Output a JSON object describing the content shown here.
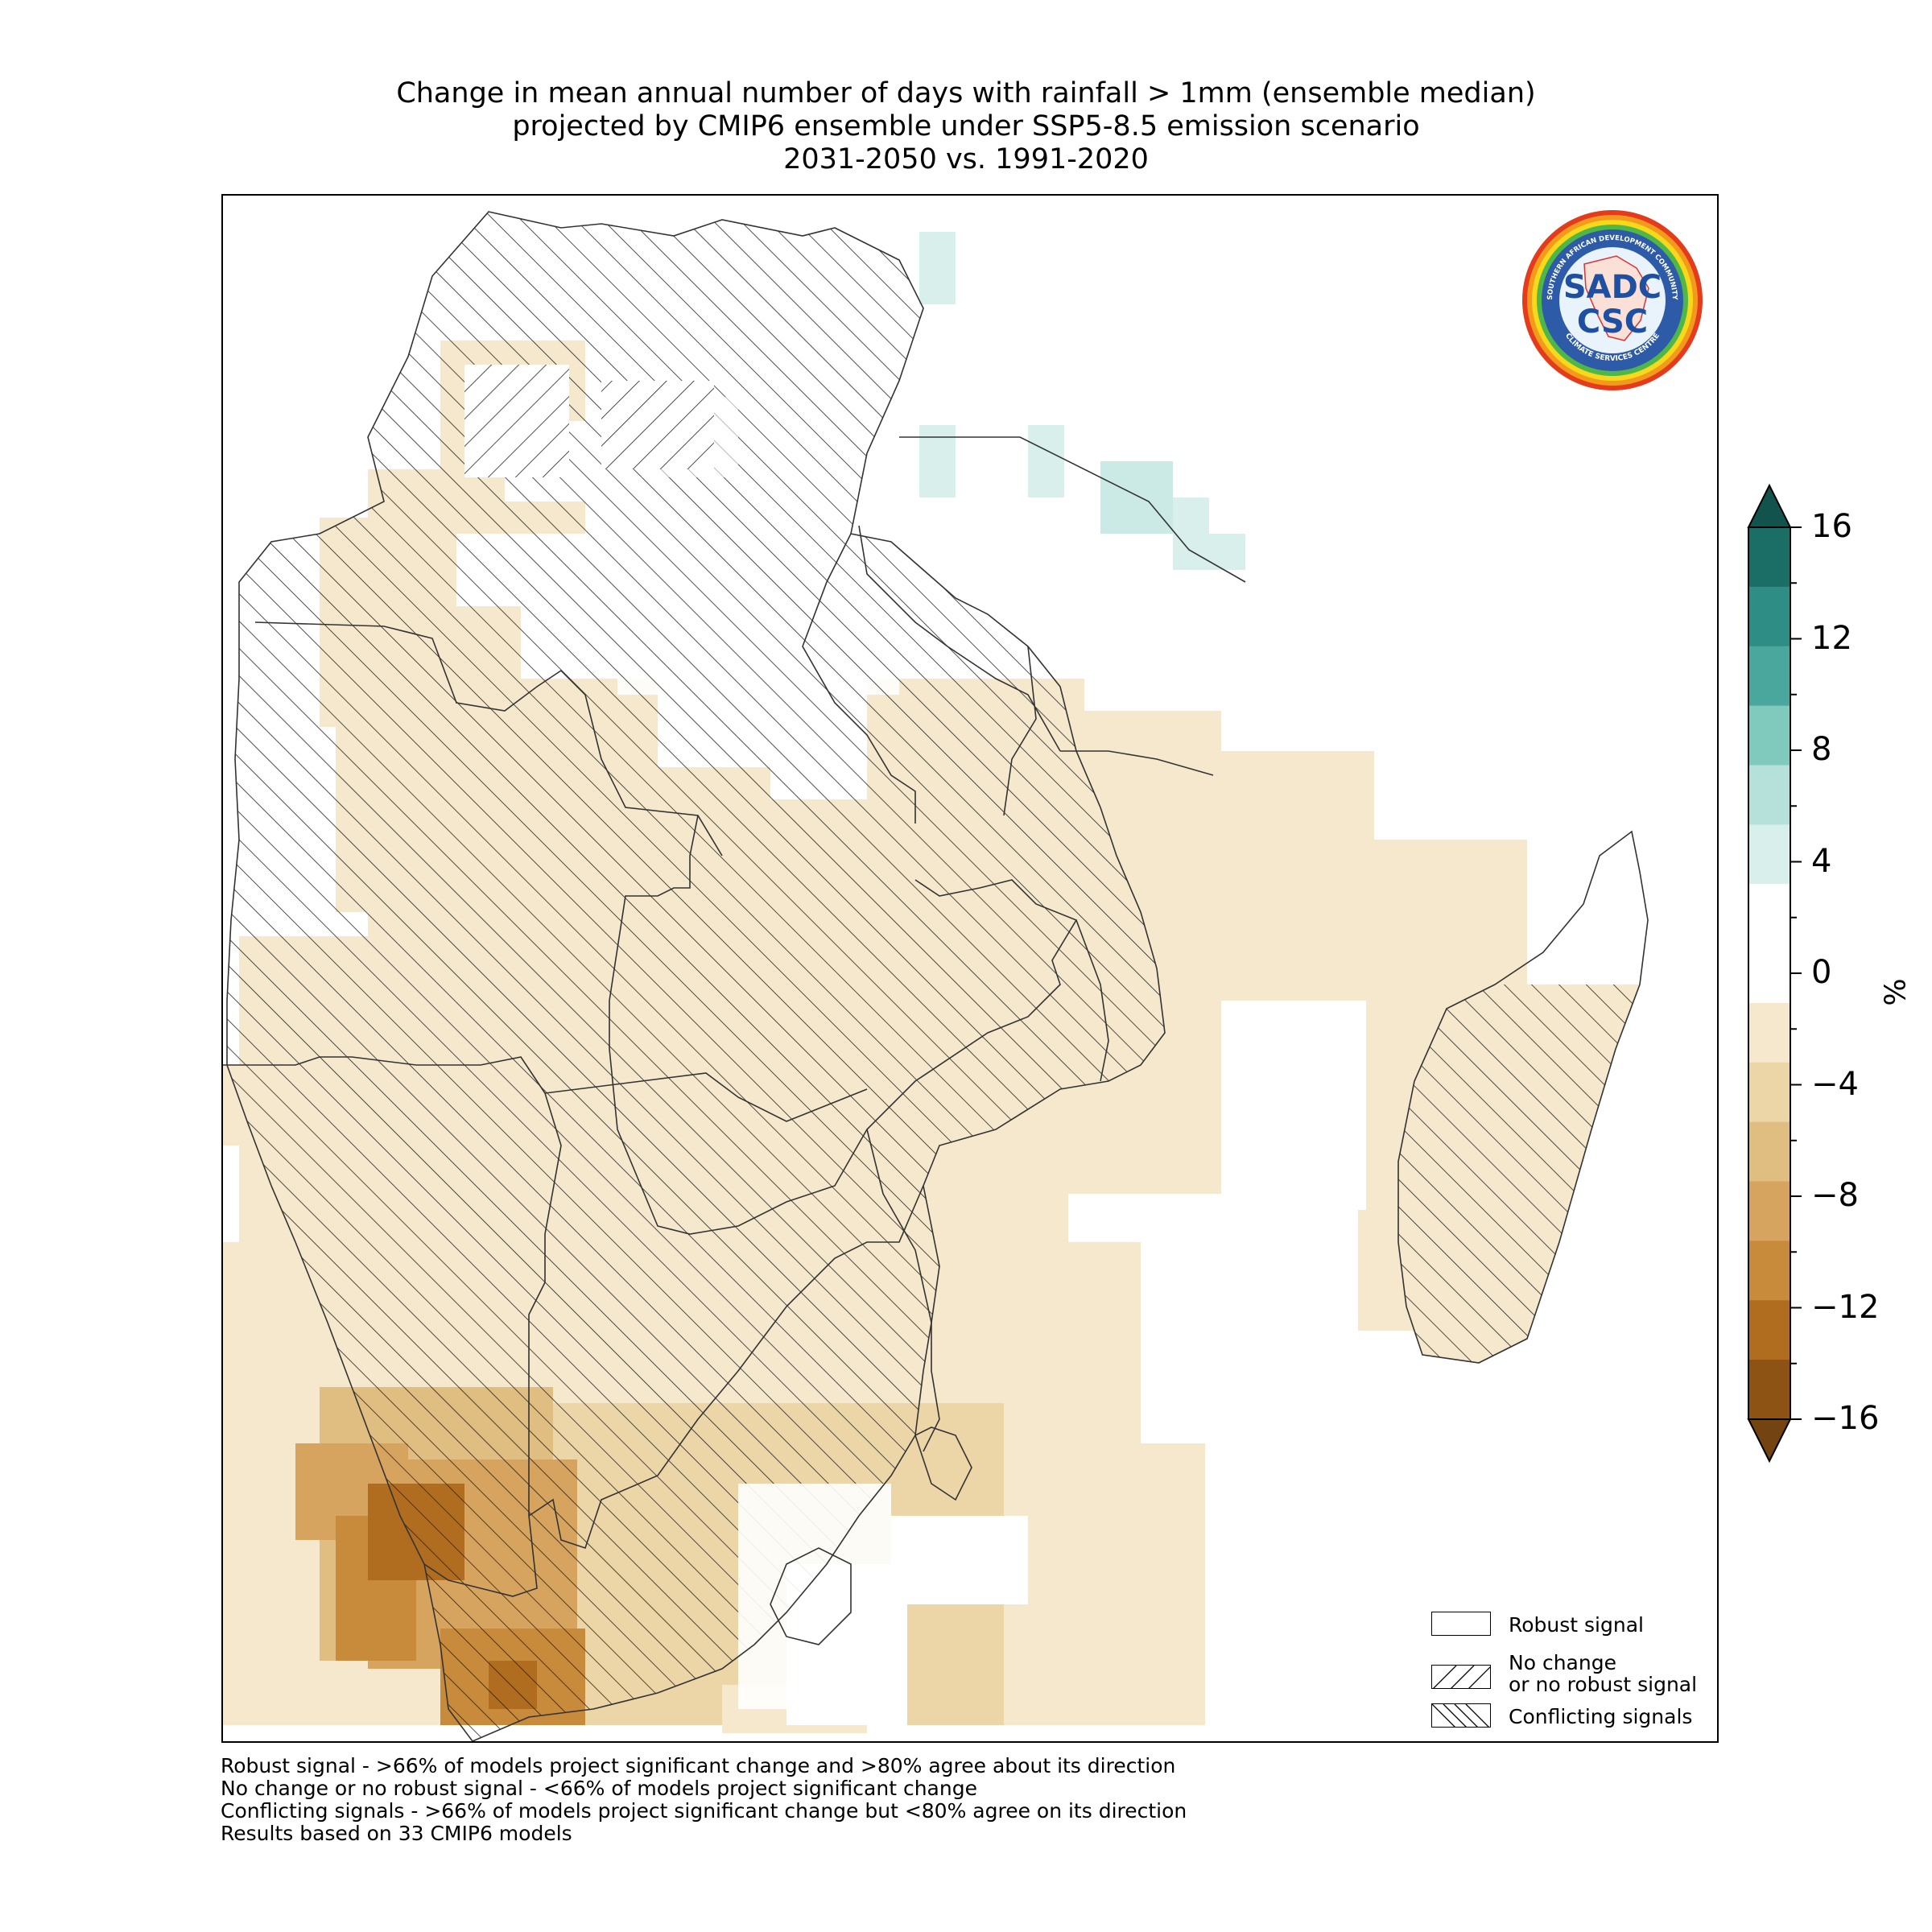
{
  "title": {
    "line1": "Change in mean annual number of days with rainfall > 1mm (ensemble median)",
    "line2": "projected by CMIP6 ensemble under SSP5-8.5 emission scenario",
    "line3": "2031-2050 vs. 1991-2020"
  },
  "logo": {
    "ring_text_top": "SOUTHERN AFRICAN DEVELOPMENT COMMUNITY",
    "ring_text_bottom": "CLIMATE SERVICES CENTRE",
    "center_text_top": "SADC",
    "center_text_bottom": "CSC"
  },
  "colorbar": {
    "unit": "%",
    "ticks": [
      "16",
      "12",
      "8",
      "4",
      "0",
      "−4",
      "−8",
      "−12",
      "−16"
    ],
    "colors_top_to_bottom": [
      "#1a6e66",
      "#2e8d84",
      "#4aa79d",
      "#80c9bd",
      "#b5e1da",
      "#d8efec",
      "#ffffff",
      "#ffffff",
      "#f5e8cc",
      "#ecd5a7",
      "#e0bd81",
      "#d6a45f",
      "#c88a3b",
      "#b06d20",
      "#8c5314"
    ],
    "arrow_top": "#13534d",
    "arrow_bottom": "#744312"
  },
  "legend": {
    "robust": "Robust signal",
    "no_change_line1": "No change",
    "no_change_line2": "or no robust signal",
    "conflicting": "Conflicting signals"
  },
  "footnotes": [
    "Robust signal - >66% of models project significant change and >80% agree about its direction",
    "No change or no robust signal - <66% of models project significant change",
    "Conflicting signals - >66% of models project significant change but <80% agree on its direction",
    "Results based on 33 CMIP6 models"
  ]
}
